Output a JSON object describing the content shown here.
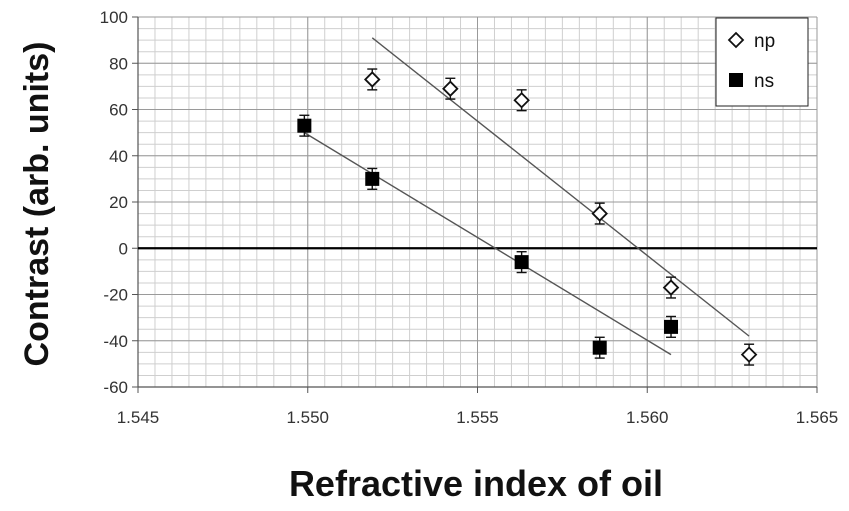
{
  "chart_data": {
    "type": "scatter",
    "title": "",
    "xlabel": "Refractive index of oil",
    "ylabel": "Contrast (arb. units)",
    "xlim": [
      1.545,
      1.565
    ],
    "ylim": [
      -60,
      100
    ],
    "x_ticks": [
      "1.545",
      "1.550",
      "1.555",
      "1.560",
      "1.565"
    ],
    "y_ticks": [
      "-60",
      "-40",
      "-20",
      "0",
      "20",
      "40",
      "60",
      "80",
      "100"
    ],
    "x_tick_values": [
      1.545,
      1.55,
      1.555,
      1.56,
      1.565
    ],
    "y_tick_values": [
      -60,
      -40,
      -20,
      0,
      20,
      40,
      60,
      80,
      100
    ],
    "grid": true,
    "legend_position": "top-right",
    "series": [
      {
        "name": "np",
        "marker": "diamond-open",
        "color": "#111111",
        "points": [
          {
            "x": 1.5519,
            "y": 73,
            "err": 4.5
          },
          {
            "x": 1.5542,
            "y": 69,
            "err": 4.5
          },
          {
            "x": 1.5563,
            "y": 64,
            "err": 4.5
          },
          {
            "x": 1.5586,
            "y": 15,
            "err": 4.5
          },
          {
            "x": 1.5607,
            "y": -17,
            "err": 4.5
          },
          {
            "x": 1.563,
            "y": -46,
            "err": 4.5
          }
        ],
        "trendline": {
          "x": [
            1.5519,
            1.563
          ],
          "y": [
            91,
            -38
          ]
        }
      },
      {
        "name": "ns",
        "marker": "square-filled",
        "color": "#111111",
        "points": [
          {
            "x": 1.5499,
            "y": 53,
            "err": 4.5
          },
          {
            "x": 1.5519,
            "y": 30,
            "err": 4.5
          },
          {
            "x": 1.5563,
            "y": -6,
            "err": 4.5
          },
          {
            "x": 1.5586,
            "y": -43,
            "err": 4.5
          },
          {
            "x": 1.5607,
            "y": -34,
            "err": 4.5
          }
        ],
        "trendline": {
          "x": [
            1.5499,
            1.5607
          ],
          "y": [
            50,
            -46
          ]
        }
      }
    ]
  }
}
